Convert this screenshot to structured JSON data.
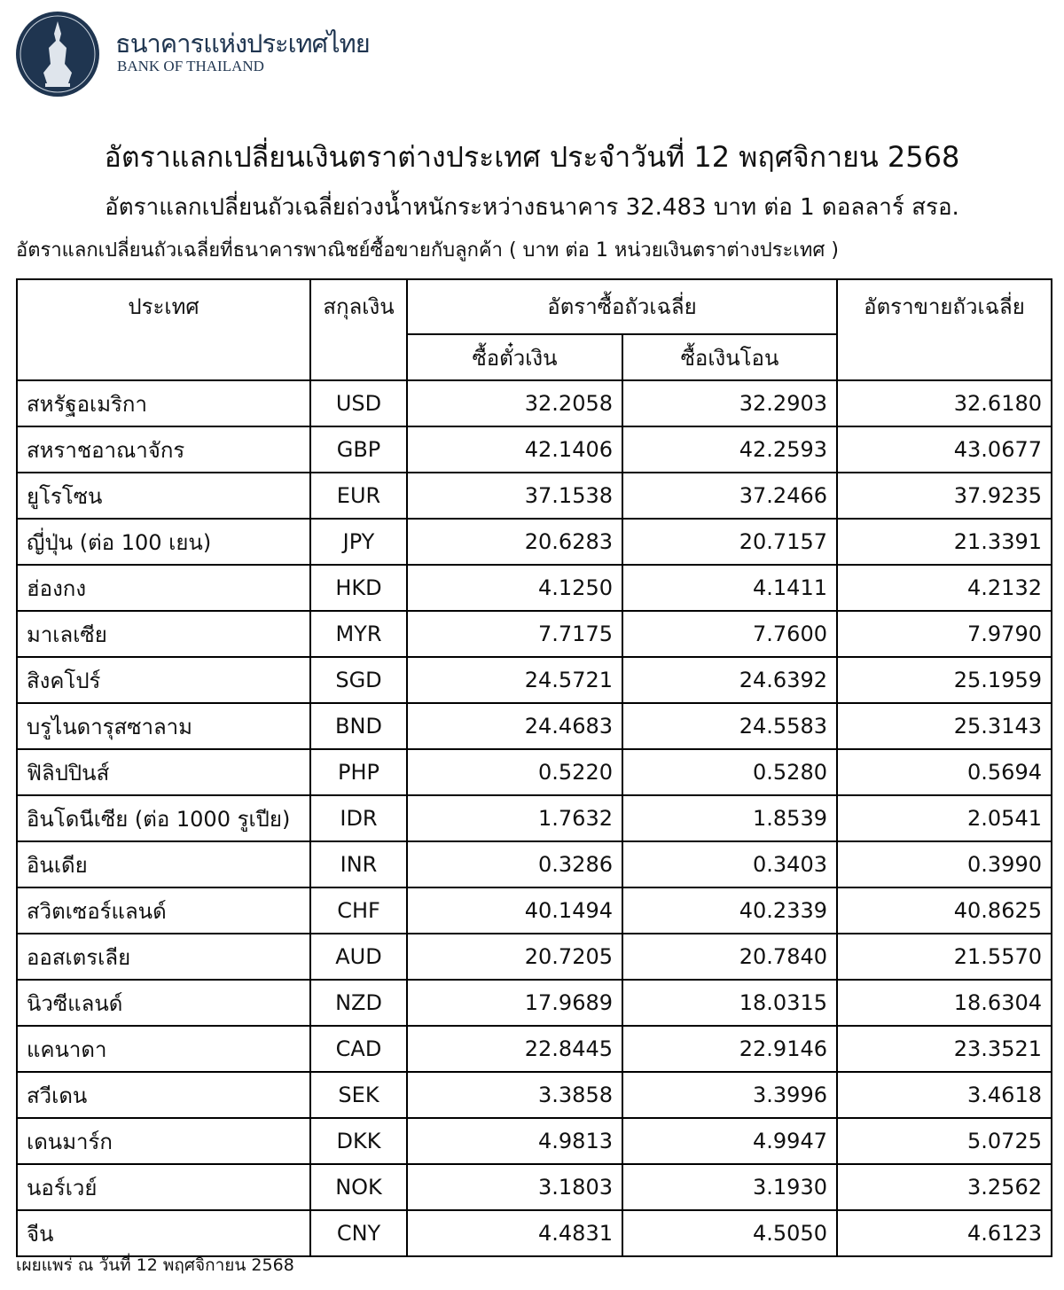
{
  "header": {
    "bank_name_th": "ธนาคารแห่งประเทศไทย",
    "bank_name_en": "BANK OF THAILAND",
    "brand_color": "#1f3550"
  },
  "title": "อัตราแลกเปลี่ยนเงินตราต่างประเทศ ประจำวันที่ 12 พฤศจิกายน 2568",
  "subtitle": "อัตราแลกเปลี่ยนถัวเฉลี่ยถ่วงน้ำหนักระหว่างธนาคาร 32.483 บาท ต่อ 1 ดอลลาร์ สรอ.",
  "note": "อัตราแลกเปลี่ยนถัวเฉลี่ยที่ธนาคารพาณิชย์ซื้อขายกับลูกค้า ( บาท ต่อ 1 หน่วยเงินตราต่างประเทศ )",
  "table": {
    "headers": {
      "country": "ประเทศ",
      "currency": "สกุลเงิน",
      "buying": "อัตราซื้อถัวเฉลี่ย",
      "buying_sight": "ซื้อตั๋วเงิน",
      "buying_transfer": "ซื้อเงินโอน",
      "selling": "อัตราขายถัวเฉลี่ย"
    },
    "rows": [
      [
        "สหรัฐอเมริกา",
        "USD",
        "32.2058",
        "32.2903",
        "32.6180"
      ],
      [
        "สหราชอาณาจักร",
        "GBP",
        "42.1406",
        "42.2593",
        "43.0677"
      ],
      [
        "ยูโรโซน",
        "EUR",
        "37.1538",
        "37.2466",
        "37.9235"
      ],
      [
        "ญี่ปุ่น (ต่อ 100 เยน)",
        "JPY",
        "20.6283",
        "20.7157",
        "21.3391"
      ],
      [
        "ฮ่องกง",
        "HKD",
        "4.1250",
        "4.1411",
        "4.2132"
      ],
      [
        "มาเลเซีย",
        "MYR",
        "7.7175",
        "7.7600",
        "7.9790"
      ],
      [
        "สิงคโปร์",
        "SGD",
        "24.5721",
        "24.6392",
        "25.1959"
      ],
      [
        "บรูไนดารุสซาลาม",
        "BND",
        "24.4683",
        "24.5583",
        "25.3143"
      ],
      [
        "ฟิลิปปินส์",
        "PHP",
        "0.5220",
        "0.5280",
        "0.5694"
      ],
      [
        "อินโดนีเซีย (ต่อ 1000 รูเปีย)",
        "IDR",
        "1.7632",
        "1.8539",
        "2.0541"
      ],
      [
        "อินเดีย",
        "INR",
        "0.3286",
        "0.3403",
        "0.3990"
      ],
      [
        "สวิตเซอร์แลนด์",
        "CHF",
        "40.1494",
        "40.2339",
        "40.8625"
      ],
      [
        "ออสเตรเลีย",
        "AUD",
        "20.7205",
        "20.7840",
        "21.5570"
      ],
      [
        "นิวซีแลนด์",
        "NZD",
        "17.9689",
        "18.0315",
        "18.6304"
      ],
      [
        "แคนาดา",
        "CAD",
        "22.8445",
        "22.9146",
        "23.3521"
      ],
      [
        "สวีเดน",
        "SEK",
        "3.3858",
        "3.3996",
        "3.4618"
      ],
      [
        "เดนมาร์ก",
        "DKK",
        "4.9813",
        "4.9947",
        "5.0725"
      ],
      [
        "นอร์เวย์",
        "NOK",
        "3.1803",
        "3.1930",
        "3.2562"
      ],
      [
        "จีน",
        "CNY",
        "4.4831",
        "4.5050",
        "4.6123"
      ]
    ]
  },
  "footer": "เผยแพร่ ณ วันที่ 12 พฤศจิกายน 2568"
}
